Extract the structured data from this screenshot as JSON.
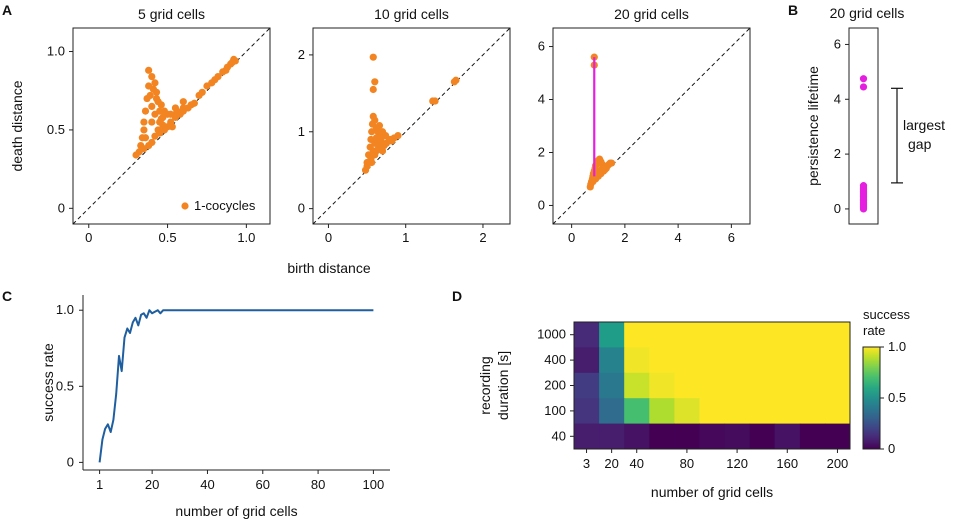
{
  "panel_letters": {
    "a": "A",
    "b": "B",
    "c": "C",
    "d": "D"
  },
  "colors": {
    "scatter": "#f28522",
    "bar": "#e51fe0",
    "line": "#1f5fa0"
  },
  "shared_labels": {
    "birth_distance": "birth distance"
  },
  "chart_data": [
    {
      "id": "A1",
      "type": "scatter",
      "title": "5 grid cells",
      "xlabel": "",
      "ylabel": "death distance",
      "xlim": [
        -0.1,
        1.15
      ],
      "ylim": [
        -0.1,
        1.15
      ],
      "xticks": [
        "0",
        "0.5",
        "1.0"
      ],
      "xtick_values": [
        0,
        0.5,
        1.0
      ],
      "yticks": [
        "0",
        "0.5",
        "1.0"
      ],
      "ytick_values": [
        0,
        0.5,
        1.0
      ],
      "diagonal": true,
      "legend": {
        "label": "1-cocycles",
        "placement": "lower-right"
      },
      "points": [
        [
          0.3,
          0.34
        ],
        [
          0.32,
          0.36
        ],
        [
          0.33,
          0.4
        ],
        [
          0.34,
          0.45
        ],
        [
          0.35,
          0.5
        ],
        [
          0.35,
          0.55
        ],
        [
          0.36,
          0.62
        ],
        [
          0.37,
          0.7
        ],
        [
          0.38,
          0.78
        ],
        [
          0.38,
          0.88
        ],
        [
          0.4,
          0.84
        ],
        [
          0.42,
          0.8
        ],
        [
          0.43,
          0.74
        ],
        [
          0.44,
          0.68
        ],
        [
          0.45,
          0.62
        ],
        [
          0.46,
          0.57
        ],
        [
          0.47,
          0.53
        ],
        [
          0.48,
          0.5
        ],
        [
          0.5,
          0.52
        ],
        [
          0.52,
          0.55
        ],
        [
          0.53,
          0.52
        ],
        [
          0.55,
          0.6
        ],
        [
          0.55,
          0.58
        ],
        [
          0.58,
          0.6
        ],
        [
          0.6,
          0.62
        ],
        [
          0.63,
          0.64
        ],
        [
          0.65,
          0.66
        ],
        [
          0.67,
          0.67
        ],
        [
          0.4,
          0.42
        ],
        [
          0.42,
          0.46
        ],
        [
          0.45,
          0.48
        ],
        [
          0.38,
          0.4
        ],
        [
          0.36,
          0.45
        ],
        [
          0.4,
          0.55
        ],
        [
          0.42,
          0.6
        ],
        [
          0.44,
          0.5
        ],
        [
          0.47,
          0.58
        ],
        [
          0.5,
          0.6
        ],
        [
          0.35,
          0.38
        ],
        [
          0.4,
          0.65
        ],
        [
          0.39,
          0.72
        ],
        [
          0.41,
          0.76
        ],
        [
          0.43,
          0.7
        ],
        [
          0.46,
          0.66
        ],
        [
          0.48,
          0.62
        ],
        [
          0.52,
          0.6
        ],
        [
          0.56,
          0.62
        ],
        [
          0.6,
          0.64
        ],
        [
          0.7,
          0.72
        ],
        [
          0.72,
          0.74
        ],
        [
          0.75,
          0.78
        ],
        [
          0.78,
          0.8
        ],
        [
          0.8,
          0.82
        ],
        [
          0.82,
          0.84
        ],
        [
          0.85,
          0.87
        ],
        [
          0.87,
          0.88
        ],
        [
          0.88,
          0.9
        ],
        [
          0.9,
          0.92
        ],
        [
          0.91,
          0.93
        ],
        [
          0.92,
          0.95
        ],
        [
          0.93,
          0.94
        ],
        [
          0.6,
          0.68
        ],
        [
          0.55,
          0.64
        ],
        [
          0.45,
          0.55
        ]
      ]
    },
    {
      "id": "A2",
      "type": "scatter",
      "title": "10 grid cells",
      "xlabel": "",
      "ylabel": "",
      "xlim": [
        -0.2,
        2.35
      ],
      "ylim": [
        -0.2,
        2.35
      ],
      "xticks": [
        "0",
        "1",
        "2"
      ],
      "xtick_values": [
        0,
        1,
        2
      ],
      "yticks": [
        "0",
        "1",
        "2"
      ],
      "ytick_values": [
        0,
        1,
        2
      ],
      "diagonal": true,
      "points": [
        [
          0.58,
          1.97
        ],
        [
          0.6,
          1.65
        ],
        [
          0.58,
          1.55
        ],
        [
          0.48,
          0.5
        ],
        [
          0.5,
          0.6
        ],
        [
          0.52,
          0.7
        ],
        [
          0.54,
          0.8
        ],
        [
          0.55,
          0.9
        ],
        [
          0.56,
          1.0
        ],
        [
          0.57,
          1.1
        ],
        [
          0.58,
          1.2
        ],
        [
          0.6,
          1.15
        ],
        [
          0.62,
          1.05
        ],
        [
          0.64,
          1.0
        ],
        [
          0.66,
          0.95
        ],
        [
          0.68,
          0.9
        ],
        [
          0.7,
          0.85
        ],
        [
          0.72,
          0.82
        ],
        [
          0.75,
          0.85
        ],
        [
          0.78,
          0.88
        ],
        [
          0.8,
          0.9
        ],
        [
          0.55,
          0.65
        ],
        [
          0.6,
          0.7
        ],
        [
          0.62,
          0.75
        ],
        [
          0.65,
          0.8
        ],
        [
          0.7,
          0.75
        ],
        [
          0.6,
          0.85
        ],
        [
          0.62,
          0.92
        ],
        [
          0.64,
          0.88
        ],
        [
          0.5,
          0.55
        ],
        [
          0.56,
          0.6
        ],
        [
          0.58,
          0.75
        ],
        [
          0.66,
          1.08
        ],
        [
          0.7,
          1.0
        ],
        [
          0.74,
          0.95
        ],
        [
          0.82,
          0.88
        ],
        [
          0.85,
          0.92
        ],
        [
          0.9,
          0.95
        ],
        [
          1.35,
          1.4
        ],
        [
          1.38,
          1.4
        ],
        [
          1.63,
          1.65
        ],
        [
          1.65,
          1.67
        ]
      ]
    },
    {
      "id": "A3",
      "type": "scatter",
      "title": "20 grid cells",
      "xlabel": "",
      "ylabel": "",
      "xlim": [
        -0.7,
        6.7
      ],
      "ylim": [
        -0.7,
        6.7
      ],
      "xticks": [
        "0",
        "2",
        "4",
        "6"
      ],
      "xtick_values": [
        0,
        2,
        4,
        6
      ],
      "yticks": [
        "0",
        "2",
        "4",
        "6"
      ],
      "ytick_values": [
        0,
        2,
        4,
        6
      ],
      "diagonal": true,
      "highlight_bar": {
        "x": 0.85,
        "y0": 1.1,
        "y1": 5.6
      },
      "points": [
        [
          0.85,
          5.6
        ],
        [
          0.85,
          5.3
        ],
        [
          0.7,
          0.7
        ],
        [
          0.72,
          0.8
        ],
        [
          0.75,
          0.9
        ],
        [
          0.78,
          1.0
        ],
        [
          0.8,
          1.1
        ],
        [
          0.82,
          1.2
        ],
        [
          0.85,
          1.3
        ],
        [
          0.88,
          1.4
        ],
        [
          0.9,
          1.5
        ],
        [
          0.95,
          1.6
        ],
        [
          1.0,
          1.7
        ],
        [
          1.05,
          1.75
        ],
        [
          1.1,
          1.65
        ],
        [
          1.15,
          1.55
        ],
        [
          1.2,
          1.45
        ],
        [
          1.25,
          1.35
        ],
        [
          1.3,
          1.4
        ],
        [
          1.35,
          1.5
        ],
        [
          1.4,
          1.55
        ],
        [
          1.45,
          1.6
        ],
        [
          1.5,
          1.6
        ],
        [
          0.9,
          1.0
        ],
        [
          1.0,
          1.1
        ],
        [
          1.1,
          1.2
        ],
        [
          1.2,
          1.3
        ],
        [
          0.8,
          0.9
        ],
        [
          0.95,
          1.2
        ],
        [
          1.05,
          1.3
        ],
        [
          1.15,
          1.4
        ]
      ]
    },
    {
      "id": "B",
      "type": "scatter",
      "title": "20 grid cells",
      "xlabel": "",
      "ylabel": "persistence lifetime",
      "ylim": [
        -0.55,
        6.6
      ],
      "yticks": [
        "0",
        "2",
        "4",
        "6"
      ],
      "ytick_values": [
        0,
        2,
        4,
        6
      ],
      "values": [
        4.75,
        4.45,
        0.85,
        0.8,
        0.75,
        0.7,
        0.65,
        0.6,
        0.55,
        0.5,
        0.45,
        0.4,
        0.35,
        0.3,
        0.25,
        0.2,
        0.15,
        0.1,
        0.05,
        0.0
      ],
      "annotation": {
        "label1": "largest",
        "label2": "gap",
        "y0": 0.95,
        "y1": 4.4
      }
    },
    {
      "id": "C",
      "type": "line",
      "title": "",
      "xlabel": "number of grid cells",
      "ylabel": "success rate",
      "xlim": [
        -5,
        106
      ],
      "ylim": [
        -0.05,
        1.1
      ],
      "xticks": [
        "1",
        "20",
        "40",
        "60",
        "80",
        "100"
      ],
      "xtick_values": [
        1,
        20,
        40,
        60,
        80,
        100
      ],
      "yticks": [
        "0",
        "0.5",
        "1.0"
      ],
      "ytick_values": [
        0,
        0.5,
        1.0
      ],
      "x": [
        1,
        2,
        3,
        4,
        5,
        6,
        7,
        8,
        9,
        10,
        11,
        12,
        13,
        14,
        15,
        16,
        17,
        18,
        19,
        20,
        21,
        22,
        23,
        24,
        25,
        26,
        30,
        40,
        60,
        80,
        100
      ],
      "y": [
        0.0,
        0.15,
        0.22,
        0.25,
        0.2,
        0.28,
        0.45,
        0.7,
        0.6,
        0.82,
        0.88,
        0.85,
        0.92,
        0.95,
        0.9,
        0.97,
        0.98,
        0.95,
        1.0,
        0.98,
        0.99,
        1.0,
        0.98,
        1.0,
        1.0,
        1.0,
        1.0,
        1.0,
        1.0,
        1.0,
        1.0
      ]
    },
    {
      "id": "D",
      "type": "heatmap",
      "title": "",
      "xlabel": "number of grid cells",
      "ylabel_line1": "recording",
      "ylabel_line2": "duration [s]",
      "xtick_labels": [
        "3",
        "20",
        "40",
        "80",
        "120",
        "160",
        "200"
      ],
      "xtick_columns": [
        0,
        1,
        2,
        4,
        6,
        8,
        10
      ],
      "row_labels": [
        "1000",
        "400",
        "200",
        "100",
        "40"
      ],
      "colorbar": {
        "title": "success rate",
        "ticks": [
          "1.0",
          "0.5",
          "0"
        ],
        "tick_values": [
          1.0,
          0.5,
          0
        ]
      },
      "columns": 11,
      "z": [
        [
          0.12,
          0.55,
          1.0,
          1.0,
          1.0,
          1.0,
          1.0,
          1.0,
          1.0,
          1.0,
          1.0
        ],
        [
          0.08,
          0.45,
          0.98,
          1.0,
          1.0,
          1.0,
          1.0,
          1.0,
          1.0,
          1.0,
          1.0
        ],
        [
          0.18,
          0.4,
          0.92,
          0.98,
          1.0,
          1.0,
          1.0,
          1.0,
          1.0,
          1.0,
          1.0
        ],
        [
          0.15,
          0.35,
          0.7,
          0.88,
          0.95,
          1.0,
          1.0,
          1.0,
          1.0,
          1.0,
          1.0
        ],
        [
          0.08,
          0.08,
          0.05,
          0.0,
          0.0,
          0.02,
          0.03,
          0.0,
          0.05,
          0.0,
          0.0
        ]
      ]
    }
  ]
}
